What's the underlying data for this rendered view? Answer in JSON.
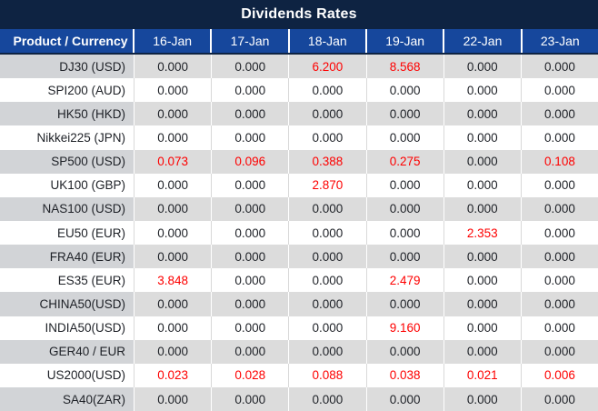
{
  "title": "Dividends Rates",
  "colors": {
    "title_bar_bg": "#0e2342",
    "header_bg": "#16479c",
    "header_text": "#ffffff",
    "row_gray_label_bg": "#d2d4d7",
    "row_gray_value_bg": "#dcdcdc",
    "row_white_bg": "#ffffff",
    "value_text": "#1e2127",
    "highlight_red": "#fe0000"
  },
  "table": {
    "product_header": "Product / Currency",
    "date_headers": [
      "16-Jan",
      "17-Jan",
      "18-Jan",
      "19-Jan",
      "22-Jan",
      "23-Jan"
    ],
    "rows": [
      {
        "product": "DJ30 (USD)",
        "values": [
          "0.000",
          "0.000",
          "6.200",
          "8.568",
          "0.000",
          "0.000"
        ],
        "red": [
          false,
          false,
          true,
          true,
          false,
          false
        ]
      },
      {
        "product": "SPI200 (AUD)",
        "values": [
          "0.000",
          "0.000",
          "0.000",
          "0.000",
          "0.000",
          "0.000"
        ],
        "red": [
          false,
          false,
          false,
          false,
          false,
          false
        ]
      },
      {
        "product": "HK50 (HKD)",
        "values": [
          "0.000",
          "0.000",
          "0.000",
          "0.000",
          "0.000",
          "0.000"
        ],
        "red": [
          false,
          false,
          false,
          false,
          false,
          false
        ]
      },
      {
        "product": "Nikkei225 (JPN)",
        "values": [
          "0.000",
          "0.000",
          "0.000",
          "0.000",
          "0.000",
          "0.000"
        ],
        "red": [
          false,
          false,
          false,
          false,
          false,
          false
        ]
      },
      {
        "product": "SP500 (USD)",
        "values": [
          "0.073",
          "0.096",
          "0.388",
          "0.275",
          "0.000",
          "0.108"
        ],
        "red": [
          true,
          true,
          true,
          true,
          false,
          true
        ]
      },
      {
        "product": "UK100 (GBP)",
        "values": [
          "0.000",
          "0.000",
          "2.870",
          "0.000",
          "0.000",
          "0.000"
        ],
        "red": [
          false,
          false,
          true,
          false,
          false,
          false
        ]
      },
      {
        "product": "NAS100 (USD)",
        "values": [
          "0.000",
          "0.000",
          "0.000",
          "0.000",
          "0.000",
          "0.000"
        ],
        "red": [
          false,
          false,
          false,
          false,
          false,
          false
        ]
      },
      {
        "product": "EU50 (EUR)",
        "values": [
          "0.000",
          "0.000",
          "0.000",
          "0.000",
          "2.353",
          "0.000"
        ],
        "red": [
          false,
          false,
          false,
          false,
          true,
          false
        ]
      },
      {
        "product": "FRA40 (EUR)",
        "values": [
          "0.000",
          "0.000",
          "0.000",
          "0.000",
          "0.000",
          "0.000"
        ],
        "red": [
          false,
          false,
          false,
          false,
          false,
          false
        ]
      },
      {
        "product": "ES35 (EUR)",
        "values": [
          "3.848",
          "0.000",
          "0.000",
          "2.479",
          "0.000",
          "0.000"
        ],
        "red": [
          true,
          false,
          false,
          true,
          false,
          false
        ]
      },
      {
        "product": "CHINA50(USD)",
        "values": [
          "0.000",
          "0.000",
          "0.000",
          "0.000",
          "0.000",
          "0.000"
        ],
        "red": [
          false,
          false,
          false,
          false,
          false,
          false
        ]
      },
      {
        "product": "INDIA50(USD)",
        "values": [
          "0.000",
          "0.000",
          "0.000",
          "9.160",
          "0.000",
          "0.000"
        ],
        "red": [
          false,
          false,
          false,
          true,
          false,
          false
        ]
      },
      {
        "product": "GER40 / EUR",
        "values": [
          "0.000",
          "0.000",
          "0.000",
          "0.000",
          "0.000",
          "0.000"
        ],
        "red": [
          false,
          false,
          false,
          false,
          false,
          false
        ]
      },
      {
        "product": "US2000(USD)",
        "values": [
          "0.023",
          "0.028",
          "0.088",
          "0.038",
          "0.021",
          "0.006"
        ],
        "red": [
          true,
          true,
          true,
          true,
          true,
          true
        ]
      },
      {
        "product": "SA40(ZAR)",
        "values": [
          "0.000",
          "0.000",
          "0.000",
          "0.000",
          "0.000",
          "0.000"
        ],
        "red": [
          false,
          false,
          false,
          false,
          false,
          false
        ]
      }
    ]
  }
}
